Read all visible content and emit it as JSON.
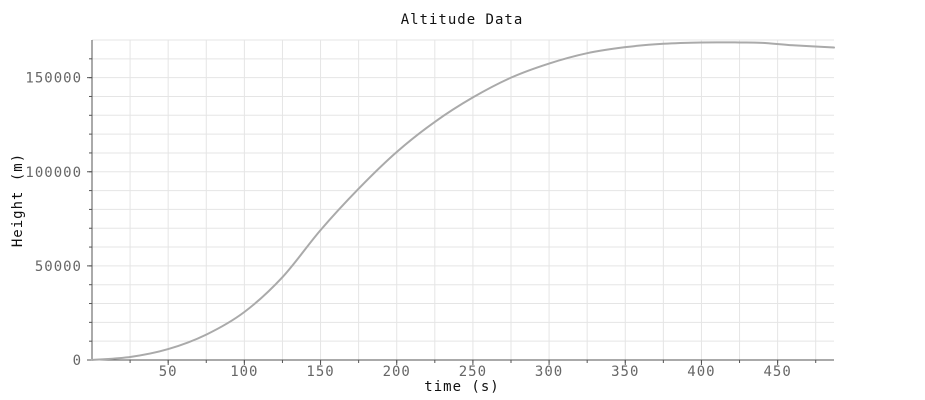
{
  "chart_data": {
    "type": "line",
    "title": "Altitude Data",
    "xlabel": "time (s)",
    "ylabel": "Height (m)",
    "xlim": [
      0,
      487
    ],
    "ylim": [
      0,
      170000
    ],
    "x_ticks": [
      50,
      100,
      150,
      200,
      250,
      300,
      350,
      400,
      450
    ],
    "x_tick_labels": [
      "50",
      "100",
      "150",
      "200",
      "250",
      "300",
      "350",
      "400",
      "450"
    ],
    "y_ticks": [
      0,
      50000,
      100000,
      150000
    ],
    "y_tick_labels": [
      "0",
      "50000",
      "100000",
      "150000"
    ],
    "x_grid_step": 25,
    "y_grid_step": 10000,
    "grid": true,
    "legend": "none",
    "series": [
      {
        "color": "#aaaaaa",
        "x": [
          0,
          25,
          50,
          75,
          100,
          125,
          150,
          175,
          200,
          225,
          250,
          275,
          300,
          325,
          350,
          375,
          400,
          425,
          440,
          460,
          487
        ],
        "y": [
          0,
          1600,
          5800,
          13500,
          25500,
          44000,
          69000,
          91000,
          110500,
          126500,
          139500,
          150000,
          157500,
          163000,
          166200,
          168000,
          168700,
          168700,
          168500,
          167200,
          166000
        ]
      }
    ],
    "colors": {
      "grid": "#e5e5e5",
      "axis": "#555555",
      "background": "#ffffff"
    }
  }
}
